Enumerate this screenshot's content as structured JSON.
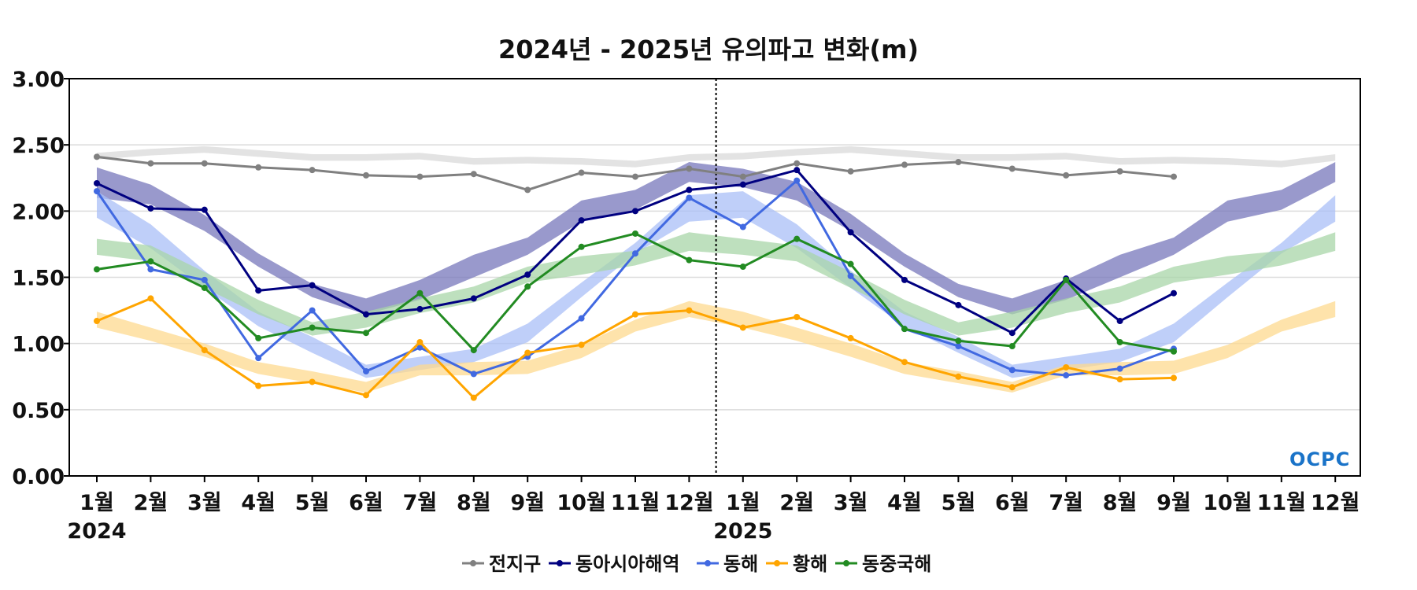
{
  "chart_data": {
    "type": "line",
    "title": "2024년 - 2025년 유의파고 변화(m)",
    "xlabel": "",
    "ylabel": "",
    "ylim": [
      0,
      3
    ],
    "yticks": [
      "0.00",
      "0.50",
      "1.00",
      "1.50",
      "2.00",
      "2.50",
      "3.00"
    ],
    "ytick_values": [
      0,
      0.5,
      1,
      1.5,
      2,
      2.5,
      3
    ],
    "categories": [
      "1월",
      "2월",
      "3월",
      "4월",
      "5월",
      "6월",
      "7월",
      "8월",
      "9월",
      "10월",
      "11월",
      "12월",
      "1월",
      "2월",
      "3월",
      "4월",
      "5월",
      "6월",
      "7월",
      "8월",
      "9월",
      "10월",
      "11월",
      "12월"
    ],
    "year_labels": [
      {
        "label": "2024",
        "index": 0
      },
      {
        "label": "2025",
        "index": 12
      }
    ],
    "divider_between": [
      11,
      12
    ],
    "grid": true,
    "legend_position": "bottom-center",
    "series": [
      {
        "name": "전지구",
        "color": "#808080",
        "band_color": "#d9d9d9",
        "values": [
          2.41,
          2.36,
          2.36,
          2.33,
          2.31,
          2.27,
          2.26,
          2.28,
          2.16,
          2.29,
          2.26,
          2.32,
          2.26,
          2.36,
          2.3,
          2.35,
          2.37,
          2.32,
          2.27,
          2.3,
          2.26,
          null,
          null,
          null
        ],
        "band": [
          [
            2.39,
            2.44
          ],
          [
            2.42,
            2.47
          ],
          [
            2.44,
            2.49
          ],
          [
            2.41,
            2.46
          ],
          [
            2.38,
            2.43
          ],
          [
            2.38,
            2.43
          ],
          [
            2.39,
            2.44
          ],
          [
            2.35,
            2.4
          ],
          [
            2.36,
            2.41
          ],
          [
            2.35,
            2.4
          ],
          [
            2.33,
            2.38
          ],
          [
            2.38,
            2.43
          ],
          [
            2.39,
            2.44
          ],
          [
            2.42,
            2.47
          ],
          [
            2.44,
            2.49
          ],
          [
            2.41,
            2.46
          ],
          [
            2.38,
            2.43
          ],
          [
            2.38,
            2.43
          ],
          [
            2.39,
            2.44
          ],
          [
            2.35,
            2.4
          ],
          [
            2.36,
            2.41
          ],
          [
            2.35,
            2.4
          ],
          [
            2.33,
            2.38
          ],
          [
            2.38,
            2.43
          ]
        ]
      },
      {
        "name": "동아시아해역",
        "color": "#000080",
        "band_color": "#7777bb",
        "values": [
          2.21,
          2.02,
          2.01,
          1.4,
          1.44,
          1.22,
          1.26,
          1.34,
          1.52,
          1.93,
          2.0,
          2.16,
          2.2,
          2.31,
          1.84,
          1.48,
          1.29,
          1.08,
          1.49,
          1.17,
          1.38,
          null,
          null,
          null
        ],
        "band": [
          [
            2.1,
            2.33
          ],
          [
            2.05,
            2.2
          ],
          [
            1.85,
            1.97
          ],
          [
            1.58,
            1.68
          ],
          [
            1.35,
            1.45
          ],
          [
            1.22,
            1.34
          ],
          [
            1.33,
            1.48
          ],
          [
            1.5,
            1.67
          ],
          [
            1.67,
            1.8
          ],
          [
            1.92,
            2.08
          ],
          [
            2.01,
            2.16
          ],
          [
            2.22,
            2.37
          ],
          [
            2.18,
            2.32
          ],
          [
            2.08,
            2.22
          ],
          [
            1.85,
            1.98
          ],
          [
            1.58,
            1.68
          ],
          [
            1.35,
            1.45
          ],
          [
            1.22,
            1.34
          ],
          [
            1.33,
            1.48
          ],
          [
            1.5,
            1.67
          ],
          [
            1.67,
            1.8
          ],
          [
            1.92,
            2.08
          ],
          [
            2.01,
            2.16
          ],
          [
            2.22,
            2.37
          ]
        ]
      },
      {
        "name": "동해",
        "color": "#4169e1",
        "band_color": "#a9bff7",
        "values": [
          2.15,
          1.56,
          1.48,
          0.89,
          1.25,
          0.79,
          0.97,
          0.77,
          0.9,
          1.19,
          1.68,
          2.1,
          1.88,
          2.23,
          1.51,
          1.11,
          0.98,
          0.8,
          0.76,
          0.81,
          0.96,
          null,
          null,
          null
        ],
        "band": [
          [
            1.95,
            2.15
          ],
          [
            1.72,
            1.9
          ],
          [
            1.42,
            1.55
          ],
          [
            1.13,
            1.24
          ],
          [
            0.93,
            1.05
          ],
          [
            0.74,
            0.84
          ],
          [
            0.8,
            0.9
          ],
          [
            0.86,
            0.96
          ],
          [
            1.01,
            1.15
          ],
          [
            1.35,
            1.46
          ],
          [
            1.68,
            1.76
          ],
          [
            1.92,
            2.12
          ],
          [
            1.95,
            2.15
          ],
          [
            1.72,
            1.9
          ],
          [
            1.42,
            1.55
          ],
          [
            1.13,
            1.24
          ],
          [
            0.93,
            1.05
          ],
          [
            0.74,
            0.84
          ],
          [
            0.8,
            0.9
          ],
          [
            0.86,
            0.96
          ],
          [
            1.01,
            1.15
          ],
          [
            1.35,
            1.46
          ],
          [
            1.68,
            1.76
          ],
          [
            1.92,
            2.12
          ]
        ]
      },
      {
        "name": "황해",
        "color": "#ffa500",
        "band_color": "#fdd98f",
        "values": [
          1.17,
          1.34,
          0.95,
          0.68,
          0.71,
          0.61,
          1.01,
          0.59,
          0.93,
          0.99,
          1.22,
          1.25,
          1.12,
          1.2,
          1.04,
          0.86,
          0.75,
          0.67,
          0.82,
          0.73,
          0.74,
          null,
          null,
          null
        ],
        "band": [
          [
            1.12,
            1.24
          ],
          [
            1.02,
            1.12
          ],
          [
            0.9,
            1.0
          ],
          [
            0.77,
            0.86
          ],
          [
            0.7,
            0.79
          ],
          [
            0.63,
            0.71
          ],
          [
            0.76,
            0.84
          ],
          [
            0.76,
            0.86
          ],
          [
            0.77,
            0.87
          ],
          [
            0.89,
            0.99
          ],
          [
            1.09,
            1.18
          ],
          [
            1.2,
            1.32
          ],
          [
            1.12,
            1.24
          ],
          [
            1.02,
            1.12
          ],
          [
            0.9,
            1.0
          ],
          [
            0.77,
            0.86
          ],
          [
            0.7,
            0.79
          ],
          [
            0.63,
            0.71
          ],
          [
            0.76,
            0.84
          ],
          [
            0.76,
            0.86
          ],
          [
            0.77,
            0.87
          ],
          [
            0.89,
            0.99
          ],
          [
            1.09,
            1.18
          ],
          [
            1.2,
            1.32
          ]
        ]
      },
      {
        "name": "동중국해",
        "color": "#228b22",
        "band_color": "#a8d5a8",
        "values": [
          1.56,
          1.62,
          1.42,
          1.04,
          1.12,
          1.08,
          1.38,
          0.95,
          1.43,
          1.73,
          1.83,
          1.63,
          1.58,
          1.79,
          1.6,
          1.11,
          1.02,
          0.98,
          1.48,
          1.01,
          0.94,
          null,
          null,
          null
        ],
        "band": [
          [
            1.67,
            1.79
          ],
          [
            1.62,
            1.74
          ],
          [
            1.42,
            1.54
          ],
          [
            1.22,
            1.33
          ],
          [
            1.06,
            1.16
          ],
          [
            1.12,
            1.24
          ],
          [
            1.23,
            1.34
          ],
          [
            1.31,
            1.43
          ],
          [
            1.46,
            1.58
          ],
          [
            1.52,
            1.66
          ],
          [
            1.59,
            1.7
          ],
          [
            1.7,
            1.84
          ],
          [
            1.67,
            1.79
          ],
          [
            1.62,
            1.74
          ],
          [
            1.42,
            1.54
          ],
          [
            1.22,
            1.33
          ],
          [
            1.06,
            1.16
          ],
          [
            1.12,
            1.24
          ],
          [
            1.23,
            1.34
          ],
          [
            1.31,
            1.43
          ],
          [
            1.46,
            1.58
          ],
          [
            1.52,
            1.66
          ],
          [
            1.59,
            1.7
          ],
          [
            1.7,
            1.84
          ]
        ]
      }
    ]
  },
  "logo": {
    "text": "OCPC",
    "color": "#1a73c8"
  }
}
